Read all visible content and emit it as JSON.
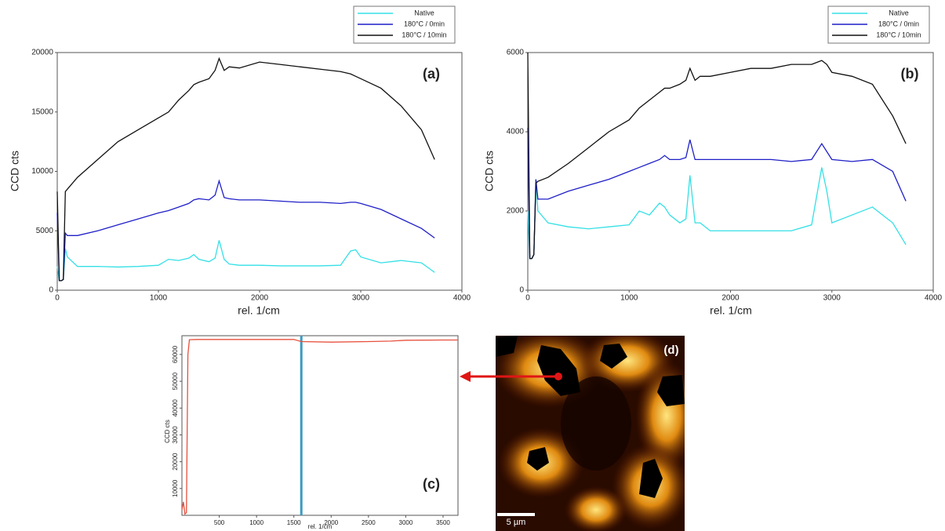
{
  "chart_data": [
    {
      "type": "line",
      "panel_label": "(a)",
      "x_label": "rel. 1/cm",
      "y_label": "CCD cts",
      "x": [
        0,
        20,
        40,
        60,
        80,
        100,
        200,
        400,
        600,
        800,
        1000,
        1100,
        1200,
        1300,
        1350,
        1400,
        1500,
        1560,
        1600,
        1650,
        1700,
        1800,
        2000,
        2200,
        2400,
        2600,
        2800,
        2900,
        2950,
        3000,
        3200,
        3400,
        3600,
        3730
      ],
      "series": [
        {
          "name": "Native",
          "color": "#33e0e6",
          "values": [
            2000,
            800,
            800,
            900,
            3500,
            2800,
            2000,
            2000,
            1950,
            2000,
            2100,
            2600,
            2500,
            2700,
            3000,
            2600,
            2400,
            2700,
            4200,
            2600,
            2200,
            2100,
            2100,
            2050,
            2050,
            2050,
            2100,
            3300,
            3400,
            2800,
            2300,
            2500,
            2300,
            1500
          ]
        },
        {
          "name": "180°C / 0min",
          "color": "#1f1fc8",
          "values": [
            6500,
            800,
            800,
            900,
            4800,
            4600,
            4600,
            5000,
            5500,
            6000,
            6500,
            6700,
            7000,
            7300,
            7600,
            7700,
            7600,
            8000,
            9200,
            7800,
            7700,
            7600,
            7600,
            7500,
            7400,
            7400,
            7300,
            7400,
            7400,
            7300,
            6800,
            6000,
            5200,
            4400
          ]
        },
        {
          "name": "180°C / 10min",
          "color": "#111111",
          "values": [
            8300,
            800,
            800,
            900,
            8300,
            8500,
            9500,
            11000,
            12500,
            13500,
            14500,
            15000,
            16000,
            16800,
            17300,
            17500,
            17800,
            18500,
            19500,
            18500,
            18800,
            18700,
            19200,
            19000,
            18800,
            18600,
            18400,
            18200,
            18000,
            17800,
            17000,
            15500,
            13500,
            11000
          ]
        }
      ],
      "xlim": [
        0,
        4000
      ],
      "xticks": [
        0,
        1000,
        2000,
        3000,
        4000
      ],
      "ylim": [
        0,
        20000
      ],
      "yticks": [
        0,
        5000,
        10000,
        15000,
        20000
      ],
      "legend": "top-right"
    },
    {
      "type": "line",
      "panel_label": "(b)",
      "x_label": "rel. 1/cm",
      "y_label": "CCD cts",
      "x": [
        0,
        20,
        40,
        60,
        80,
        100,
        200,
        400,
        600,
        800,
        1000,
        1100,
        1200,
        1300,
        1350,
        1400,
        1500,
        1560,
        1600,
        1650,
        1700,
        1800,
        2000,
        2200,
        2400,
        2600,
        2800,
        2900,
        2950,
        3000,
        3200,
        3400,
        3600,
        3730
      ],
      "series": [
        {
          "name": "Native",
          "color": "#33e0e6",
          "values": [
            2000,
            800,
            800,
            900,
            2800,
            2000,
            1700,
            1600,
            1550,
            1600,
            1650,
            2000,
            1900,
            2200,
            2100,
            1900,
            1700,
            1800,
            2900,
            1700,
            1700,
            1500,
            1500,
            1500,
            1500,
            1500,
            1650,
            3100,
            2500,
            1700,
            1900,
            2100,
            1700,
            1150
          ]
        },
        {
          "name": "180°C / 0min",
          "color": "#1f1fc8",
          "values": [
            4100,
            800,
            800,
            900,
            2800,
            2300,
            2300,
            2500,
            2650,
            2800,
            3000,
            3100,
            3200,
            3300,
            3400,
            3300,
            3300,
            3350,
            3800,
            3300,
            3300,
            3300,
            3300,
            3300,
            3300,
            3250,
            3300,
            3700,
            3500,
            3300,
            3250,
            3300,
            3000,
            2250
          ]
        },
        {
          "name": "180°C / 10min",
          "color": "#111111",
          "values": [
            6000,
            800,
            800,
            900,
            2700,
            2750,
            2850,
            3200,
            3600,
            4000,
            4300,
            4600,
            4800,
            5000,
            5100,
            5100,
            5200,
            5300,
            5600,
            5300,
            5400,
            5400,
            5500,
            5600,
            5600,
            5700,
            5700,
            5800,
            5700,
            5500,
            5400,
            5200,
            4400,
            3700
          ]
        }
      ],
      "xlim": [
        0,
        4000
      ],
      "xticks": [
        0,
        1000,
        2000,
        3000,
        4000
      ],
      "ylim": [
        0,
        6000
      ],
      "yticks": [
        0,
        2000,
        4000,
        6000
      ],
      "legend": "top-right"
    },
    {
      "type": "line",
      "panel_label": "(c)",
      "x_label": "rel. 1/cm",
      "y_label": "CCD cts",
      "x": [
        0,
        20,
        40,
        60,
        80,
        100,
        200,
        500,
        1000,
        1500,
        1600,
        2000,
        2500,
        2800,
        3000,
        3500,
        3700
      ],
      "series": [
        {
          "color": "#e8503c",
          "values": [
            2000,
            5000,
            500,
            1000,
            60000,
            65500,
            65600,
            65600,
            65600,
            65600,
            64800,
            64600,
            64800,
            65000,
            65300,
            65400,
            65400
          ]
        }
      ],
      "cursor_x": 1600,
      "cursor_color": "#3a9cc0",
      "xlim": [
        0,
        3700
      ],
      "xticks": [
        500,
        1000,
        1500,
        2000,
        2500,
        3000,
        3500
      ],
      "ylim": [
        0,
        67000
      ],
      "yticks": [
        10000,
        20000,
        30000,
        40000,
        50000,
        60000
      ]
    }
  ],
  "image": {
    "panel_label": "(d)",
    "scale_bar": "5 µm"
  }
}
